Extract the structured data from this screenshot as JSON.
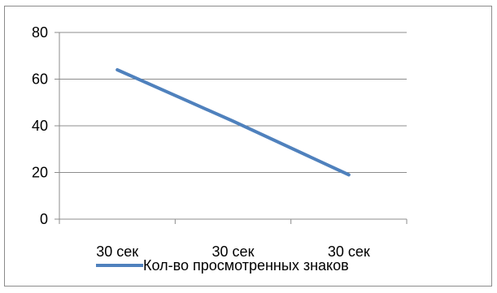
{
  "chart_data": {
    "type": "line",
    "categories": [
      "30 сек",
      "30 сек",
      "30 сек"
    ],
    "series": [
      {
        "name": "Кол-во просмотренных знаков",
        "values": [
          64,
          42,
          19
        ],
        "color": "#4f81bd"
      }
    ],
    "yticks": [
      "0",
      "20",
      "40",
      "60",
      "80"
    ],
    "ylim": [
      0,
      80
    ],
    "grid": true,
    "legend": "bottom"
  }
}
